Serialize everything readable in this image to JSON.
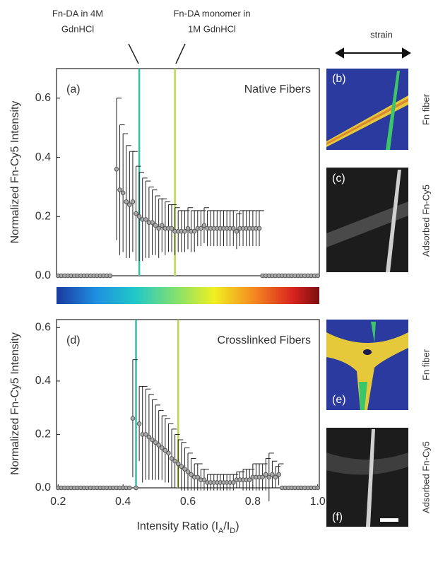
{
  "chart_data": [
    {
      "type": "scatter",
      "panel_label": "(a)",
      "title": "Native Fibers",
      "y_label": "Normalized Fn-Cy5 Intensity",
      "xlim": [
        0.195,
        1.005
      ],
      "ylim": [
        0,
        0.7
      ],
      "yticks": [
        {
          "value": 0,
          "label": "0.0"
        },
        0.2,
        0.4,
        0.6
      ],
      "vlines": [
        {
          "x": 0.45,
          "color": "#33bfa6"
        },
        {
          "x": 0.56,
          "color": "#b9d94c"
        }
      ],
      "x": [
        0.2,
        0.21,
        0.22,
        0.23,
        0.24,
        0.25,
        0.26,
        0.27,
        0.28,
        0.29,
        0.3,
        0.31,
        0.32,
        0.33,
        0.34,
        0.35,
        0.36,
        0.37,
        0.38,
        0.39,
        0.4,
        0.41,
        0.42,
        0.43,
        0.44,
        0.45,
        0.46,
        0.47,
        0.48,
        0.49,
        0.5,
        0.51,
        0.52,
        0.53,
        0.54,
        0.55,
        0.56,
        0.57,
        0.58,
        0.59,
        0.6,
        0.61,
        0.62,
        0.63,
        0.64,
        0.65,
        0.66,
        0.67,
        0.68,
        0.69,
        0.7,
        0.71,
        0.72,
        0.73,
        0.74,
        0.75,
        0.76,
        0.77,
        0.78,
        0.79,
        0.8,
        0.81,
        0.82,
        0.83,
        0.84,
        0.85,
        0.86,
        0.87,
        0.88,
        0.89,
        0.9,
        0.91,
        0.92,
        0.93,
        0.94,
        0.95,
        0.96,
        0.97,
        0.98,
        0.99,
        1.0
      ],
      "series": [
        {
          "color": "#555555",
          "values": [
            0,
            0,
            0,
            0,
            0,
            0,
            0,
            0,
            0,
            0,
            0,
            0,
            0,
            0,
            0,
            0,
            0,
            null,
            0.36,
            0.29,
            0.28,
            0.25,
            0.24,
            0.25,
            0.21,
            0.2,
            0.19,
            0.19,
            0.18,
            0.18,
            0.17,
            0.16,
            0.17,
            0.16,
            0.16,
            0.16,
            0.15,
            0.15,
            0.15,
            0.15,
            0.16,
            0.15,
            0.15,
            0.16,
            0.16,
            0.17,
            0.16,
            0.16,
            0.16,
            0.16,
            0.16,
            0.16,
            0.16,
            0.16,
            0.16,
            0.15,
            0.16,
            0.16,
            0.16,
            0.16,
            0.16,
            0.16,
            0.16,
            0,
            0,
            0,
            0,
            0,
            0,
            0,
            0,
            0,
            0,
            0,
            0,
            0,
            0,
            0,
            0,
            0,
            0
          ],
          "errors": [
            null,
            null,
            null,
            null,
            null,
            null,
            null,
            null,
            null,
            null,
            null,
            null,
            null,
            null,
            null,
            null,
            null,
            null,
            0.24,
            0.22,
            0.2,
            0.19,
            0.18,
            0.17,
            0.16,
            0.15,
            0.14,
            0.13,
            0.12,
            0.11,
            0.1,
            0.1,
            0.09,
            0.09,
            0.08,
            0.08,
            0.08,
            0.07,
            0.07,
            0.07,
            0.07,
            0.07,
            0.07,
            0.06,
            0.06,
            0.06,
            0.06,
            0.06,
            0.06,
            0.06,
            0.06,
            0.06,
            0.06,
            0.06,
            0.06,
            0.06,
            0.06,
            0.06,
            0.06,
            0.06,
            0.06,
            0.06,
            0.06,
            null,
            null,
            null,
            null,
            null,
            null,
            null,
            null,
            null,
            null,
            null,
            null,
            null,
            null,
            null,
            null,
            null,
            null
          ]
        }
      ]
    },
    {
      "type": "scatter",
      "panel_label": "(d)",
      "title": "Crosslinked Fibers",
      "y_label": "Normalized Fn-Cy5 Intensity",
      "x_label": [
        "Intensity Ratio (I",
        "A",
        "/I",
        "D",
        ")"
      ],
      "xlim": [
        0.195,
        1.005
      ],
      "ylim": [
        0,
        0.63
      ],
      "xticks": [
        0.2,
        0.4,
        0.6,
        0.8,
        {
          "value": 1,
          "label": "1.0"
        }
      ],
      "yticks": [
        {
          "value": 0,
          "label": "0.0"
        },
        0.2,
        0.4,
        0.6
      ],
      "vlines": [
        {
          "x": 0.44,
          "color": "#33bfa6"
        },
        {
          "x": 0.57,
          "color": "#b9d94c"
        }
      ],
      "x": [
        0.2,
        0.21,
        0.22,
        0.23,
        0.24,
        0.25,
        0.26,
        0.27,
        0.28,
        0.29,
        0.3,
        0.31,
        0.32,
        0.33,
        0.34,
        0.35,
        0.36,
        0.37,
        0.38,
        0.39,
        0.4,
        0.41,
        0.42,
        0.43,
        0.44,
        0.45,
        0.46,
        0.47,
        0.48,
        0.49,
        0.5,
        0.51,
        0.52,
        0.53,
        0.54,
        0.55,
        0.56,
        0.57,
        0.58,
        0.59,
        0.6,
        0.61,
        0.62,
        0.63,
        0.64,
        0.65,
        0.66,
        0.67,
        0.68,
        0.69,
        0.7,
        0.71,
        0.72,
        0.73,
        0.74,
        0.75,
        0.76,
        0.77,
        0.78,
        0.79,
        0.8,
        0.81,
        0.82,
        0.83,
        0.84,
        0.85,
        0.86,
        0.87,
        0.88,
        0.89,
        0.9,
        0.91,
        0.92,
        0.93,
        0.94,
        0.95,
        0.96,
        0.97,
        0.98,
        0.99,
        1.0
      ],
      "series": [
        {
          "color": "#555555",
          "values": [
            0,
            0,
            0,
            0,
            0,
            0,
            0,
            0,
            0,
            0,
            0,
            0,
            0,
            0,
            0,
            0,
            0,
            0,
            0,
            0,
            0,
            0,
            0,
            0.26,
            0,
            0.24,
            0.2,
            0.2,
            0.19,
            0.18,
            0.17,
            0.16,
            0.15,
            0.14,
            0.13,
            0.11,
            0.1,
            0.09,
            0.08,
            0.07,
            0.06,
            0.05,
            0.04,
            0.04,
            0.03,
            0.03,
            0.02,
            0.02,
            0.02,
            0.02,
            0.02,
            0.02,
            0.02,
            0.02,
            0.02,
            0.03,
            0.03,
            0.03,
            0.03,
            0.03,
            0.04,
            0.04,
            0.04,
            0.04,
            0.05,
            0.04,
            0.05,
            0.04,
            0.05,
            0,
            0,
            0,
            0,
            0,
            0,
            0,
            0,
            0,
            0,
            0,
            0
          ],
          "errors": [
            null,
            null,
            null,
            null,
            null,
            null,
            null,
            null,
            null,
            null,
            null,
            null,
            null,
            null,
            null,
            null,
            null,
            null,
            null,
            null,
            null,
            null,
            null,
            0.22,
            null,
            0.14,
            0.18,
            0.17,
            0.16,
            0.15,
            0.14,
            0.13,
            0.12,
            0.12,
            0.11,
            0.11,
            0.1,
            0.09,
            0.09,
            0.08,
            0.07,
            0.06,
            0.05,
            0.05,
            0.04,
            0.04,
            0.03,
            0.03,
            0.03,
            0.03,
            0.03,
            0.03,
            0.03,
            0.03,
            0.03,
            0.03,
            0.03,
            0.04,
            0.04,
            0.04,
            0.05,
            0.05,
            0.05,
            0.05,
            0.06,
            0.09,
            0.05,
            0.04,
            0.04,
            null,
            null,
            null,
            null,
            null,
            null,
            null,
            null,
            null,
            null,
            null,
            null
          ]
        }
      ]
    }
  ],
  "annotations": [
    {
      "lines": [
        "Fn-DA in 4M",
        "GdnHCl"
      ]
    },
    {
      "lines": [
        "Fn-DA monomer in",
        "1M GdnHCl"
      ]
    }
  ],
  "strain_label": "strain",
  "image_panels": [
    {
      "label": "(b)",
      "side_label": "Fn fiber"
    },
    {
      "label": "(c)",
      "side_label": "Adsorbed Fn-Cy5"
    },
    {
      "label": "(e)",
      "side_label": "Fn fiber"
    },
    {
      "label": "(f)",
      "side_label": "Adsorbed Fn-Cy5"
    }
  ]
}
